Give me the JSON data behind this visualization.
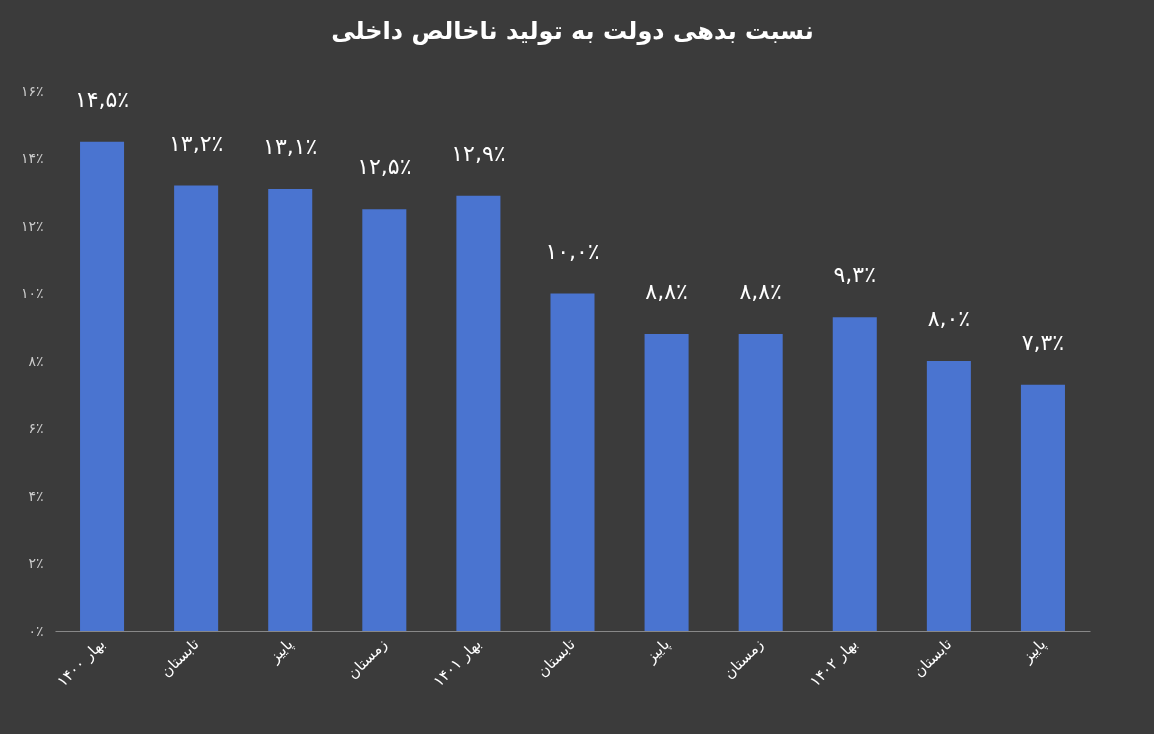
{
  "chart_data": {
    "type": "bar",
    "title": "نسبت بدهی دولت به تولید ناخالص داخلی",
    "categories": [
      "بهار ۱۴۰۰",
      "تابستان",
      "پاییز",
      "زمستان",
      "بهار ۱۴۰۱",
      "تابستان",
      "پاییز",
      "زمستان",
      "بهار ۱۴۰۲",
      "تابستان",
      "پاییز"
    ],
    "values": [
      14.5,
      13.2,
      13.1,
      12.5,
      12.9,
      10.0,
      8.8,
      8.8,
      9.3,
      8.0,
      7.3
    ],
    "value_labels": [
      "۱۴,۵٪",
      "۱۳,۲٪",
      "۱۳,۱٪",
      "۱۲,۵٪",
      "۱۲,۹٪",
      "۱۰,۰٪",
      "۸,۸٪",
      "۸,۸٪",
      "۹,۳٪",
      "۸,۰٪",
      "۷,۳٪"
    ],
    "color": "#4a74d0",
    "ylim": [
      0,
      16
    ],
    "yticks": [
      {
        "value": 0,
        "label": "۰٪"
      },
      {
        "value": 2,
        "label": "۲٪"
      },
      {
        "value": 4,
        "label": "۴٪"
      },
      {
        "value": 6,
        "label": "۶٪"
      },
      {
        "value": 8,
        "label": "۸٪"
      },
      {
        "value": 10,
        "label": "۱۰٪"
      },
      {
        "value": 12,
        "label": "۱۲٪"
      },
      {
        "value": 14,
        "label": "۱۴٪"
      },
      {
        "value": 16,
        "label": "۱۶٪"
      }
    ],
    "grid": false
  }
}
